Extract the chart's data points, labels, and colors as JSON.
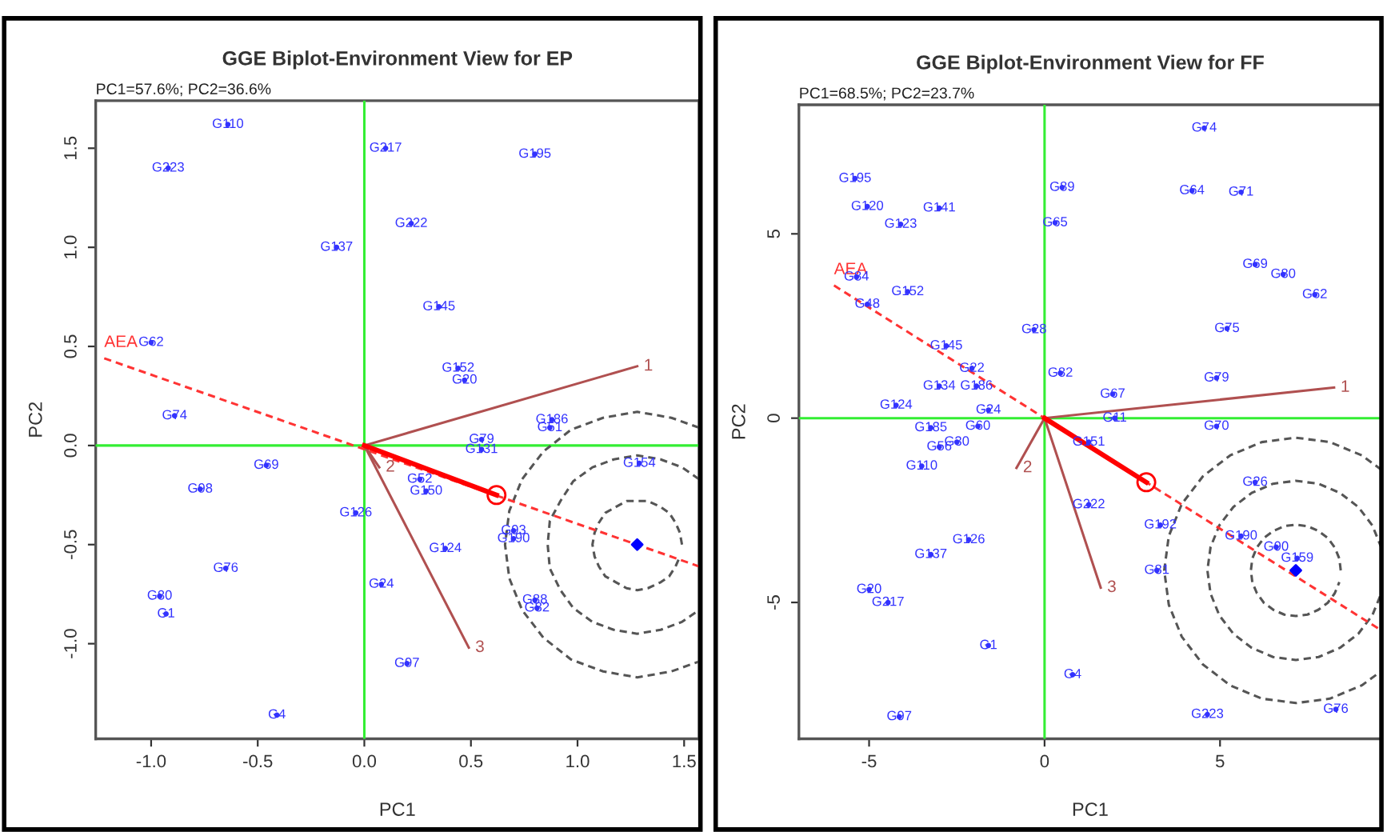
{
  "chart_data": [
    {
      "type": "scatter",
      "title": "GGE Biplot-Environment View for EP",
      "subtitle": "PC1=57.6%; PC2=36.6%",
      "xlabel": "PC1",
      "ylabel": "PC2",
      "xlim": [
        -1.26,
        1.57
      ],
      "ylim": [
        -1.48,
        1.74
      ],
      "xticks": [
        {
          "value": -1.0,
          "label": "-1.0"
        },
        {
          "value": -0.5,
          "label": "-0.5"
        },
        {
          "value": 0.0,
          "label": "0.0"
        },
        {
          "value": 0.5,
          "label": "0.5"
        },
        {
          "value": 1.0,
          "label": "1.0"
        },
        {
          "value": 1.5,
          "label": "1.5"
        }
      ],
      "yticks": [
        {
          "value": -1.0,
          "label": "-1.0"
        },
        {
          "value": -0.5,
          "label": "-0.5"
        },
        {
          "value": 0.0,
          "label": "0.0"
        },
        {
          "value": 0.5,
          "label": "0.5"
        },
        {
          "value": 1.0,
          "label": "1.0"
        },
        {
          "value": 1.5,
          "label": "1.5"
        }
      ],
      "series": [
        {
          "type": "line",
          "color": "#33ee33",
          "x": [
            0,
            0
          ],
          "values": [
            -1.48,
            1.74
          ]
        },
        {
          "type": "line",
          "color": "#33ee33",
          "x": [
            -1.26,
            1.57
          ],
          "values": [
            0,
            0
          ]
        },
        {
          "type": "line",
          "line_style": "dashed",
          "color": "#555555",
          "x": [
            1.57,
            1.44,
            1.28,
            1.12,
            0.97,
            0.84,
            0.74,
            0.68,
            0.66,
            0.68,
            0.74,
            0.84,
            0.97,
            1.12,
            1.28,
            1.44,
            1.57
          ],
          "values": [
            0.09,
            0.14,
            0.17,
            0.14,
            0.08,
            -0.03,
            -0.17,
            -0.33,
            -0.5,
            -0.67,
            -0.83,
            -0.97,
            -1.08,
            -1.14,
            -1.17,
            -1.14,
            -1.09
          ]
        },
        {
          "type": "line",
          "line_style": "dashed",
          "color": "#555555",
          "x": [
            1.57,
            1.49,
            1.39,
            1.28,
            1.17,
            1.07,
            0.98,
            0.92,
            0.87,
            0.86,
            0.87,
            0.92,
            0.98,
            1.07,
            1.17,
            1.28,
            1.39,
            1.49,
            1.57
          ],
          "values": [
            -0.17,
            -0.11,
            -0.07,
            -0.05,
            -0.07,
            -0.11,
            -0.18,
            -0.28,
            -0.38,
            -0.5,
            -0.62,
            -0.73,
            -0.82,
            -0.89,
            -0.93,
            -0.95,
            -0.93,
            -0.89,
            -0.83
          ]
        },
        {
          "type": "line",
          "line_style": "dashed",
          "color": "#555555",
          "x": [
            1.49,
            1.48,
            1.46,
            1.43,
            1.39,
            1.33,
            1.28,
            1.23,
            1.18,
            1.13,
            1.1,
            1.08,
            1.07,
            1.08,
            1.1,
            1.13,
            1.18,
            1.23,
            1.28,
            1.33,
            1.39,
            1.43,
            1.46,
            1.48
          ],
          "values": [
            -0.5,
            -0.44,
            -0.39,
            -0.34,
            -0.31,
            -0.28,
            -0.28,
            -0.28,
            -0.31,
            -0.34,
            -0.39,
            -0.44,
            -0.5,
            -0.56,
            -0.61,
            -0.66,
            -0.69,
            -0.72,
            -0.73,
            -0.72,
            -0.69,
            -0.66,
            -0.61,
            -0.56
          ]
        },
        {
          "type": "line",
          "line_style": "dashed",
          "color": "#ff3333",
          "name": "AEA",
          "x": [
            -1.22,
            1.57
          ],
          "values": [
            0.44,
            -0.61
          ]
        },
        {
          "type": "line",
          "color": "#b05050",
          "name": "1",
          "x": [
            0,
            1.28
          ],
          "values": [
            0,
            0.4
          ]
        },
        {
          "type": "line",
          "color": "#b05050",
          "name": "2",
          "x": [
            0,
            0.07
          ],
          "values": [
            0,
            -0.11
          ]
        },
        {
          "type": "line",
          "color": "#b05050",
          "name": "3",
          "x": [
            0,
            0.49
          ],
          "values": [
            0,
            -1.02
          ]
        },
        {
          "type": "line",
          "color": "#ff0000",
          "marker": "circle",
          "x": [
            0,
            0.62
          ],
          "values": [
            0,
            -0.25
          ]
        },
        {
          "type": "scatter",
          "marker": "diamond",
          "color": "#0000ff",
          "x": [
            1.28
          ],
          "values": [
            -0.5
          ]
        },
        {
          "type": "scatter",
          "marker": "circle",
          "color": "#3333ff",
          "name": "G110",
          "x": [
            -0.64
          ],
          "values": [
            1.62
          ]
        },
        {
          "type": "scatter",
          "marker": "circle",
          "color": "#3333ff",
          "name": "G223",
          "x": [
            -0.92
          ],
          "values": [
            1.4
          ]
        },
        {
          "type": "scatter",
          "marker": "circle",
          "color": "#3333ff",
          "name": "G137",
          "x": [
            -0.13
          ],
          "values": [
            1.0
          ]
        },
        {
          "type": "scatter",
          "marker": "circle",
          "color": "#3333ff",
          "name": "G62",
          "x": [
            -1.0
          ],
          "values": [
            0.52
          ]
        },
        {
          "type": "scatter",
          "marker": "circle",
          "color": "#3333ff",
          "name": "G74",
          "x": [
            -0.89
          ],
          "values": [
            0.15
          ]
        },
        {
          "type": "scatter",
          "marker": "circle",
          "color": "#3333ff",
          "name": "G217",
          "x": [
            0.1
          ],
          "values": [
            1.5
          ]
        },
        {
          "type": "scatter",
          "marker": "circle",
          "color": "#3333ff",
          "name": "G195",
          "x": [
            0.8
          ],
          "values": [
            1.47
          ]
        },
        {
          "type": "scatter",
          "marker": "circle",
          "color": "#3333ff",
          "name": "G222",
          "x": [
            0.22
          ],
          "values": [
            1.12
          ]
        },
        {
          "type": "scatter",
          "marker": "circle",
          "color": "#3333ff",
          "name": "G145",
          "x": [
            0.35
          ],
          "values": [
            0.7
          ]
        },
        {
          "type": "scatter",
          "marker": "circle",
          "color": "#3333ff",
          "name": "G152",
          "x": [
            0.44
          ],
          "values": [
            0.39
          ]
        },
        {
          "type": "scatter",
          "marker": "circle",
          "color": "#3333ff",
          "name": "G20",
          "x": [
            0.47
          ],
          "values": [
            0.33
          ]
        },
        {
          "type": "scatter",
          "marker": "circle",
          "color": "#3333ff",
          "name": "G186",
          "x": [
            0.88
          ],
          "values": [
            0.13
          ]
        },
        {
          "type": "scatter",
          "marker": "circle",
          "color": "#3333ff",
          "name": "G51",
          "x": [
            0.87
          ],
          "values": [
            0.09
          ]
        },
        {
          "type": "scatter",
          "marker": "circle",
          "color": "#3333ff",
          "name": "G79",
          "x": [
            0.55
          ],
          "values": [
            0.03
          ]
        },
        {
          "type": "scatter",
          "marker": "circle",
          "color": "#3333ff",
          "name": "G131",
          "x": [
            0.55
          ],
          "values": [
            -0.02
          ]
        },
        {
          "type": "scatter",
          "marker": "circle",
          "color": "#3333ff",
          "name": "G69",
          "x": [
            -0.46
          ],
          "values": [
            -0.1
          ]
        },
        {
          "type": "scatter",
          "marker": "circle",
          "color": "#3333ff",
          "name": "G98",
          "x": [
            -0.77
          ],
          "values": [
            -0.22
          ]
        },
        {
          "type": "scatter",
          "marker": "circle",
          "color": "#3333ff",
          "name": "G126",
          "x": [
            -0.04
          ],
          "values": [
            -0.34
          ]
        },
        {
          "type": "scatter",
          "marker": "circle",
          "color": "#3333ff",
          "name": "G52",
          "x": [
            0.26
          ],
          "values": [
            -0.17
          ]
        },
        {
          "type": "scatter",
          "marker": "circle",
          "color": "#3333ff",
          "name": "G150",
          "x": [
            0.29
          ],
          "values": [
            -0.23
          ]
        },
        {
          "type": "scatter",
          "marker": "circle",
          "color": "#3333ff",
          "name": "G154",
          "x": [
            1.29
          ],
          "values": [
            -0.09
          ]
        },
        {
          "type": "scatter",
          "marker": "circle",
          "color": "#3333ff",
          "name": "G124",
          "x": [
            0.38
          ],
          "values": [
            -0.52
          ]
        },
        {
          "type": "scatter",
          "marker": "circle",
          "color": "#3333ff",
          "name": "G93",
          "x": [
            0.7
          ],
          "values": [
            -0.43
          ]
        },
        {
          "type": "scatter",
          "marker": "circle",
          "color": "#3333ff",
          "name": "G190",
          "x": [
            0.7
          ],
          "values": [
            -0.47
          ]
        },
        {
          "type": "scatter",
          "marker": "circle",
          "color": "#3333ff",
          "name": "G76",
          "x": [
            -0.65
          ],
          "values": [
            -0.62
          ]
        },
        {
          "type": "scatter",
          "marker": "circle",
          "color": "#3333ff",
          "name": "G24",
          "x": [
            0.08
          ],
          "values": [
            -0.7
          ]
        },
        {
          "type": "scatter",
          "marker": "circle",
          "color": "#3333ff",
          "name": "G80",
          "x": [
            -0.96
          ],
          "values": [
            -0.76
          ]
        },
        {
          "type": "scatter",
          "marker": "circle",
          "color": "#3333ff",
          "name": "G1",
          "x": [
            -0.93
          ],
          "values": [
            -0.85
          ]
        },
        {
          "type": "scatter",
          "marker": "circle",
          "color": "#3333ff",
          "name": "G88",
          "x": [
            0.8
          ],
          "values": [
            -0.78
          ]
        },
        {
          "type": "scatter",
          "marker": "circle",
          "color": "#3333ff",
          "name": "G82",
          "x": [
            0.81
          ],
          "values": [
            -0.82
          ]
        },
        {
          "type": "scatter",
          "marker": "circle",
          "color": "#3333ff",
          "name": "G97",
          "x": [
            0.2
          ],
          "values": [
            -1.1
          ]
        },
        {
          "type": "scatter",
          "marker": "circle",
          "color": "#3333ff",
          "name": "G4",
          "x": [
            -0.41
          ],
          "values": [
            -1.36
          ]
        }
      ]
    },
    {
      "type": "scatter",
      "title": "GGE Biplot-Environment View for FF",
      "subtitle": "PC1=68.5%; PC2=23.7%",
      "xlabel": "PC1",
      "ylabel": "PC2",
      "xlim": [
        -7.0,
        9.6
      ],
      "ylim": [
        -8.7,
        8.5
      ],
      "xticks": [
        {
          "value": -5,
          "label": "-5"
        },
        0,
        5
      ],
      "yticks": [
        {
          "value": -5,
          "label": "-5"
        },
        0,
        5
      ],
      "series": [
        {
          "type": "line",
          "color": "#33ee33",
          "x": [
            0,
            0
          ],
          "values": [
            -8.7,
            8.5
          ]
        },
        {
          "type": "line",
          "color": "#33ee33",
          "x": [
            -7.0,
            9.6
          ],
          "values": [
            0,
            0
          ]
        },
        {
          "type": "line",
          "line_style": "dashed",
          "color": "#555555",
          "x": [
            9.6,
            9.04,
            8.13,
            7.16,
            6.19,
            5.29,
            4.51,
            3.91,
            3.54,
            3.41,
            3.54,
            3.91,
            4.51,
            5.29,
            6.19,
            7.16,
            8.13,
            9.04,
            9.6
          ],
          "values": [
            -1.4,
            -1.01,
            -0.65,
            -0.53,
            -0.65,
            -1.01,
            -1.58,
            -2.33,
            -3.2,
            -4.13,
            -5.06,
            -5.93,
            -6.68,
            -7.25,
            -7.61,
            -7.73,
            -7.61,
            -7.25,
            -6.86
          ]
        },
        {
          "type": "line",
          "line_style": "dashed",
          "color": "#555555",
          "x": [
            9.6,
            9.34,
            8.94,
            8.42,
            7.81,
            7.16,
            6.51,
            5.9,
            5.38,
            4.98,
            4.73,
            4.64,
            4.73,
            4.98,
            5.38,
            5.9,
            6.51,
            7.16,
            7.81,
            8.42,
            8.94,
            9.34,
            9.6
          ],
          "values": [
            -3.52,
            -2.91,
            -2.41,
            -2.03,
            -1.78,
            -1.7,
            -1.78,
            -2.03,
            -2.41,
            -2.91,
            -3.5,
            -4.13,
            -4.76,
            -5.35,
            -5.85,
            -6.23,
            -6.48,
            -6.56,
            -6.48,
            -6.23,
            -5.85,
            -5.35,
            -4.74
          ]
        },
        {
          "type": "line",
          "line_style": "dashed",
          "color": "#555555",
          "x": [
            8.44,
            8.4,
            8.27,
            8.07,
            7.8,
            7.49,
            7.16,
            6.83,
            6.52,
            6.25,
            6.05,
            5.92,
            5.88,
            5.92,
            6.05,
            6.25,
            6.52,
            6.83,
            7.16,
            7.49,
            7.8,
            8.07,
            8.27,
            8.4
          ],
          "values": [
            -4.13,
            -3.81,
            -3.51,
            -3.25,
            -3.06,
            -2.93,
            -2.89,
            -2.93,
            -3.06,
            -3.25,
            -3.51,
            -3.81,
            -4.13,
            -4.45,
            -4.75,
            -5.01,
            -5.2,
            -5.33,
            -5.37,
            -5.33,
            -5.2,
            -5.01,
            -4.75,
            -4.45
          ]
        },
        {
          "type": "line",
          "line_style": "dashed",
          "color": "#ff3333",
          "name": "AEA",
          "x": [
            -6.0,
            9.6
          ],
          "values": [
            3.6,
            -5.76
          ]
        },
        {
          "type": "line",
          "color": "#b05050",
          "name": "1",
          "x": [
            0,
            8.25
          ],
          "values": [
            0,
            0.83
          ]
        },
        {
          "type": "line",
          "color": "#b05050",
          "name": "2",
          "x": [
            0,
            -0.8
          ],
          "values": [
            0,
            -1.35
          ]
        },
        {
          "type": "line",
          "color": "#b05050",
          "name": "3",
          "x": [
            0,
            1.6
          ],
          "values": [
            0,
            -4.6
          ]
        },
        {
          "type": "line",
          "color": "#ff0000",
          "marker": "circle",
          "x": [
            0,
            2.9
          ],
          "values": [
            0,
            -1.74
          ]
        },
        {
          "type": "scatter",
          "marker": "diamond",
          "color": "#0000ff",
          "x": [
            7.16
          ],
          "values": [
            -4.13
          ]
        },
        {
          "type": "scatter",
          "marker": "circle",
          "color": "#3333ff",
          "name": "G195",
          "x": [
            -5.4
          ],
          "values": [
            6.5
          ]
        },
        {
          "type": "scatter",
          "marker": "circle",
          "color": "#3333ff",
          "name": "G120",
          "x": [
            -5.05
          ],
          "values": [
            5.74
          ]
        },
        {
          "type": "scatter",
          "marker": "circle",
          "color": "#3333ff",
          "name": "G123",
          "x": [
            -4.1
          ],
          "values": [
            5.26
          ]
        },
        {
          "type": "scatter",
          "marker": "circle",
          "color": "#3333ff",
          "name": "G141",
          "x": [
            -3.0
          ],
          "values": [
            5.7
          ]
        },
        {
          "type": "scatter",
          "marker": "circle",
          "color": "#3333ff",
          "name": "G84",
          "x": [
            -5.36
          ],
          "values": [
            3.83
          ]
        },
        {
          "type": "scatter",
          "marker": "circle",
          "color": "#3333ff",
          "name": "G48",
          "x": [
            -5.05
          ],
          "values": [
            3.09
          ]
        },
        {
          "type": "scatter",
          "marker": "circle",
          "color": "#3333ff",
          "name": "G152",
          "x": [
            -3.9
          ],
          "values": [
            3.43
          ]
        },
        {
          "type": "scatter",
          "marker": "circle",
          "color": "#3333ff",
          "name": "G145",
          "x": [
            -2.8
          ],
          "values": [
            1.96
          ]
        },
        {
          "type": "scatter",
          "marker": "circle",
          "color": "#3333ff",
          "name": "G28",
          "x": [
            -0.3
          ],
          "values": [
            2.4
          ]
        },
        {
          "type": "scatter",
          "marker": "circle",
          "color": "#3333ff",
          "name": "G22",
          "x": [
            -2.07
          ],
          "values": [
            1.35
          ]
        },
        {
          "type": "scatter",
          "marker": "circle",
          "color": "#3333ff",
          "name": "G134",
          "x": [
            -3.0
          ],
          "values": [
            0.87
          ]
        },
        {
          "type": "scatter",
          "marker": "circle",
          "color": "#3333ff",
          "name": "G186",
          "x": [
            -1.94
          ],
          "values": [
            0.87
          ]
        },
        {
          "type": "scatter",
          "marker": "circle",
          "color": "#3333ff",
          "name": "G124",
          "x": [
            -4.23
          ],
          "values": [
            0.35
          ]
        },
        {
          "type": "scatter",
          "marker": "circle",
          "color": "#3333ff",
          "name": "G24",
          "x": [
            -1.6
          ],
          "values": [
            0.22
          ]
        },
        {
          "type": "scatter",
          "marker": "circle",
          "color": "#3333ff",
          "name": "G185",
          "x": [
            -3.24
          ],
          "values": [
            -0.26
          ]
        },
        {
          "type": "scatter",
          "marker": "circle",
          "color": "#3333ff",
          "name": "G60",
          "x": [
            -1.9
          ],
          "values": [
            -0.22
          ]
        },
        {
          "type": "scatter",
          "marker": "circle",
          "color": "#3333ff",
          "name": "G30",
          "x": [
            -2.5
          ],
          "values": [
            -0.65
          ]
        },
        {
          "type": "scatter",
          "marker": "circle",
          "color": "#3333ff",
          "name": "G56",
          "x": [
            -3.0
          ],
          "values": [
            -0.78
          ]
        },
        {
          "type": "scatter",
          "marker": "circle",
          "color": "#3333ff",
          "name": "G110",
          "x": [
            -3.5
          ],
          "values": [
            -1.3
          ]
        },
        {
          "type": "scatter",
          "marker": "circle",
          "color": "#3333ff",
          "name": "G126",
          "x": [
            -2.16
          ],
          "values": [
            -3.3
          ]
        },
        {
          "type": "scatter",
          "marker": "circle",
          "color": "#3333ff",
          "name": "G137",
          "x": [
            -3.24
          ],
          "values": [
            -3.7
          ]
        },
        {
          "type": "scatter",
          "marker": "circle",
          "color": "#3333ff",
          "name": "G20",
          "x": [
            -5.0
          ],
          "values": [
            -4.65
          ]
        },
        {
          "type": "scatter",
          "marker": "circle",
          "color": "#3333ff",
          "name": "G217",
          "x": [
            -4.46
          ],
          "values": [
            -5.0
          ]
        },
        {
          "type": "scatter",
          "marker": "circle",
          "color": "#3333ff",
          "name": "G1",
          "x": [
            -1.6
          ],
          "values": [
            -6.17
          ]
        },
        {
          "type": "scatter",
          "marker": "circle",
          "color": "#3333ff",
          "name": "G4",
          "x": [
            0.8
          ],
          "values": [
            -6.96
          ]
        },
        {
          "type": "scatter",
          "marker": "circle",
          "color": "#3333ff",
          "name": "G97",
          "x": [
            -4.14
          ],
          "values": [
            -8.1
          ]
        },
        {
          "type": "scatter",
          "marker": "circle",
          "color": "#3333ff",
          "name": "G223",
          "x": [
            4.64
          ],
          "values": [
            -8.04
          ]
        },
        {
          "type": "scatter",
          "marker": "circle",
          "color": "#3333ff",
          "name": "G76",
          "x": [
            8.3
          ],
          "values": [
            -7.9
          ]
        },
        {
          "type": "scatter",
          "marker": "circle",
          "color": "#3333ff",
          "name": "G222",
          "x": [
            1.26
          ],
          "values": [
            -2.35
          ]
        },
        {
          "type": "scatter",
          "marker": "circle",
          "color": "#3333ff",
          "name": "G192",
          "x": [
            3.3
          ],
          "values": [
            -2.9
          ]
        },
        {
          "type": "scatter",
          "marker": "circle",
          "color": "#3333ff",
          "name": "G81",
          "x": [
            3.2
          ],
          "values": [
            -4.13
          ]
        },
        {
          "type": "scatter",
          "marker": "circle",
          "color": "#3333ff",
          "name": "G26",
          "x": [
            6.0
          ],
          "values": [
            -1.74
          ]
        },
        {
          "type": "scatter",
          "marker": "circle",
          "color": "#3333ff",
          "name": "G190",
          "x": [
            5.6
          ],
          "values": [
            -3.2
          ]
        },
        {
          "type": "scatter",
          "marker": "circle",
          "color": "#3333ff",
          "name": "G90",
          "x": [
            6.6
          ],
          "values": [
            -3.5
          ]
        },
        {
          "type": "scatter",
          "marker": "circle",
          "color": "#3333ff",
          "name": "G159",
          "x": [
            7.2
          ],
          "values": [
            -3.8
          ]
        },
        {
          "type": "scatter",
          "marker": "circle",
          "color": "#3333ff",
          "name": "G151",
          "x": [
            1.26
          ],
          "values": [
            -0.65
          ]
        },
        {
          "type": "scatter",
          "marker": "circle",
          "color": "#3333ff",
          "name": "G74",
          "x": [
            4.55
          ],
          "values": [
            7.87
          ]
        },
        {
          "type": "scatter",
          "marker": "circle",
          "color": "#3333ff",
          "name": "G89",
          "x": [
            0.5
          ],
          "values": [
            6.26
          ]
        },
        {
          "type": "scatter",
          "marker": "circle",
          "color": "#3333ff",
          "name": "G64",
          "x": [
            4.2
          ],
          "values": [
            6.17
          ]
        },
        {
          "type": "scatter",
          "marker": "circle",
          "color": "#3333ff",
          "name": "G71",
          "x": [
            5.6
          ],
          "values": [
            6.13
          ]
        },
        {
          "type": "scatter",
          "marker": "circle",
          "color": "#3333ff",
          "name": "G65",
          "x": [
            0.3
          ],
          "values": [
            5.3
          ]
        },
        {
          "type": "scatter",
          "marker": "circle",
          "color": "#3333ff",
          "name": "G69",
          "x": [
            6.0
          ],
          "values": [
            4.17
          ]
        },
        {
          "type": "scatter",
          "marker": "circle",
          "color": "#3333ff",
          "name": "G80",
          "x": [
            6.8
          ],
          "values": [
            3.9
          ]
        },
        {
          "type": "scatter",
          "marker": "circle",
          "color": "#3333ff",
          "name": "G62",
          "x": [
            7.7
          ],
          "values": [
            3.35
          ]
        },
        {
          "type": "scatter",
          "marker": "circle",
          "color": "#3333ff",
          "name": "G75",
          "x": [
            5.2
          ],
          "values": [
            2.43
          ]
        },
        {
          "type": "scatter",
          "marker": "circle",
          "color": "#3333ff",
          "name": "G82",
          "x": [
            0.45
          ],
          "values": [
            1.22
          ]
        },
        {
          "type": "scatter",
          "marker": "circle",
          "color": "#3333ff",
          "name": "G79",
          "x": [
            4.9
          ],
          "values": [
            1.09
          ]
        },
        {
          "type": "scatter",
          "marker": "circle",
          "color": "#3333ff",
          "name": "G67",
          "x": [
            1.94
          ],
          "values": [
            0.65
          ]
        },
        {
          "type": "scatter",
          "marker": "circle",
          "color": "#3333ff",
          "name": "G11",
          "x": [
            2.0
          ],
          "values": [
            0.0
          ]
        },
        {
          "type": "scatter",
          "marker": "circle",
          "color": "#3333ff",
          "name": "G70",
          "x": [
            4.9
          ],
          "values": [
            -0.22
          ]
        }
      ]
    }
  ]
}
